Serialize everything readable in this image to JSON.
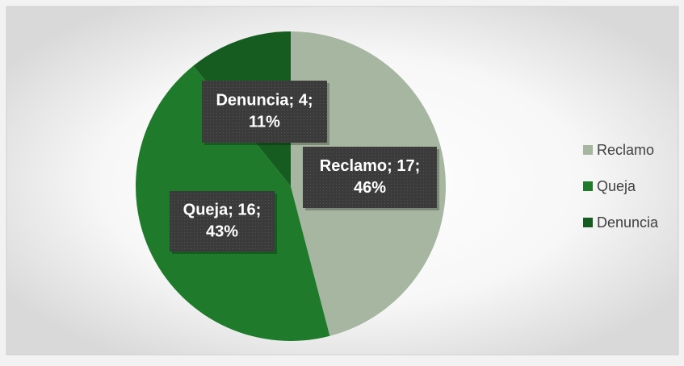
{
  "chart_data": {
    "type": "pie",
    "categories": [
      "Reclamo",
      "Queja",
      "Denuncia"
    ],
    "values": [
      17,
      16,
      4
    ],
    "value_labels": [
      [
        "Reclamo; 17;",
        "46%"
      ],
      [
        "Queja; 16;",
        "43%"
      ],
      [
        "Denuncia; 4;",
        "11%"
      ]
    ],
    "colors": [
      "#a6b6a1",
      "#1f7a2b",
      "#165c21"
    ],
    "legend": "right"
  }
}
